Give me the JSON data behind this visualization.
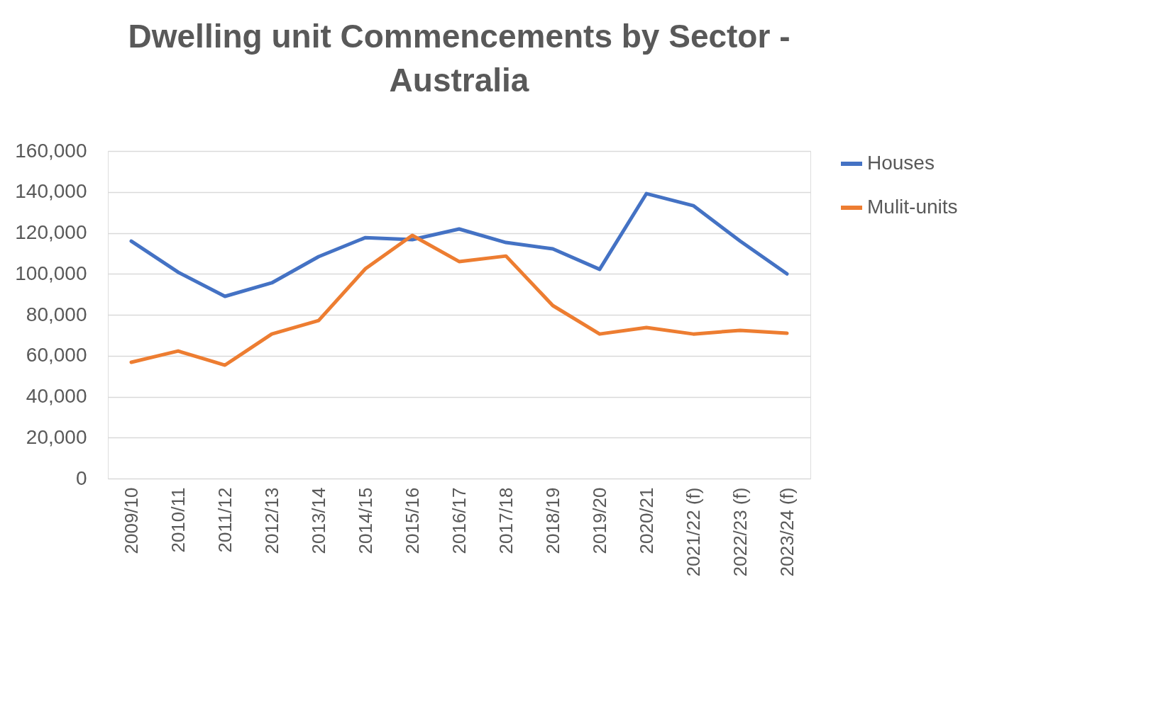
{
  "chart_data": {
    "type": "line",
    "title": [
      "Dwelling unit Commencements by Sector -",
      "Australia"
    ],
    "categories": [
      "2009/10",
      "2010/11",
      "2011/12",
      "2012/13",
      "2013/14",
      "2014/15",
      "2015/16",
      "2016/17",
      "2017/18",
      "2018/19",
      "2019/20",
      "2020/21",
      "2021/22 (f)",
      "2022/23 (f)",
      "2023/24 (f)"
    ],
    "series": [
      {
        "name": "Houses",
        "color": "#4472c4",
        "values": [
          116000,
          100800,
          89000,
          95600,
          108400,
          117700,
          116700,
          121900,
          115300,
          112200,
          102200,
          139200,
          133300,
          116000,
          100000
        ]
      },
      {
        "name": "Mulit-units",
        "color": "#ed7d31",
        "values": [
          56800,
          62300,
          55400,
          70600,
          77200,
          102500,
          118800,
          106000,
          108700,
          84500,
          70600,
          73800,
          70600,
          72400,
          71000
        ]
      }
    ],
    "ylim": [
      0,
      160000
    ],
    "yticks": [
      0,
      {
        "value": 20000,
        "label": "20,000"
      },
      {
        "value": 40000,
        "label": "40,000"
      },
      {
        "value": 60000,
        "label": "60,000"
      },
      {
        "value": 80000,
        "label": "80,000"
      },
      {
        "value": 100000,
        "label": "100,000"
      },
      {
        "value": 120000,
        "label": "120,000"
      },
      {
        "value": 140000,
        "label": "140,000"
      },
      {
        "value": 160000,
        "label": "160,000"
      }
    ],
    "grid": "y",
    "legend": "right",
    "marker": "none",
    "line_style": "solid"
  }
}
